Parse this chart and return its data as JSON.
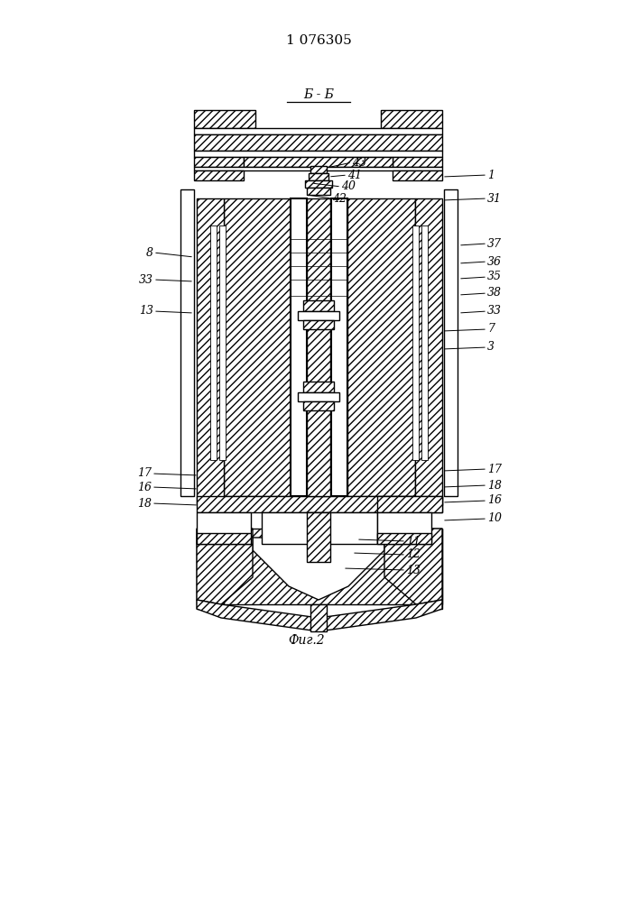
{
  "title": "1 076305",
  "section_label": "Б - Б",
  "fig_label": "Фиг.2",
  "bg_color": "#ffffff",
  "line_color": "#000000"
}
